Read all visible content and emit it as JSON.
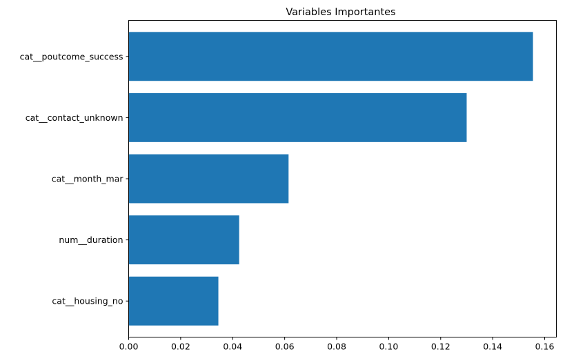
{
  "chart_data": {
    "type": "bar",
    "orientation": "horizontal",
    "title": "Variables Importantes",
    "xlabel": "",
    "ylabel": "",
    "categories": [
      "cat__housing_no",
      "num__duration",
      "cat__month_mar",
      "cat__contact_unknown",
      "cat__poutcome_success"
    ],
    "values": [
      0.0345,
      0.0425,
      0.0615,
      0.13,
      0.1555
    ],
    "xlim": [
      0,
      0.1645
    ],
    "xticks": [
      "0.00",
      "0.02",
      "0.04",
      "0.06",
      "0.08",
      "0.10",
      "0.12",
      "0.14",
      "0.16"
    ],
    "xtick_values": [
      0,
      0.02,
      0.04,
      0.06,
      0.08,
      0.1,
      0.12,
      0.14,
      0.16
    ],
    "grid": false,
    "bar_color": "#1f77b4"
  }
}
